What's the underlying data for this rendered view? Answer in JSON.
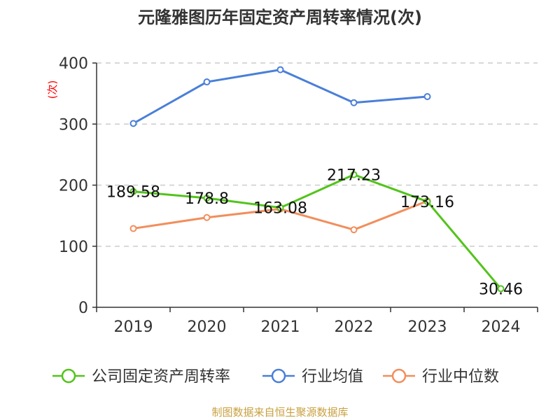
{
  "chart_data": {
    "type": "line",
    "title": "元隆雅图历年固定资产周转率情况(次)",
    "ylabel": "(次)",
    "xlabel": "",
    "categories": [
      "2019",
      "2020",
      "2021",
      "2022",
      "2023",
      "2024"
    ],
    "y_ticks": [
      "0",
      "100",
      "200",
      "300",
      "400"
    ],
    "ylim": [
      0,
      400
    ],
    "grid": true,
    "legend_position": "bottom",
    "series": [
      {
        "name": "公司固定资产周转率",
        "color": "#52c41a",
        "values": [
          189.58,
          178.8,
          163.08,
          217.23,
          173.16,
          30.46
        ],
        "labels": [
          "189.58",
          "178.8",
          "163.08",
          "217.23",
          "173.16",
          "30.46"
        ]
      },
      {
        "name": "行业均值",
        "color": "#4a7fd8",
        "values": [
          301,
          369,
          389,
          335,
          345,
          null
        ],
        "labels": null
      },
      {
        "name": "行业中位数",
        "color": "#f28e5c",
        "values": [
          129,
          147,
          161,
          127,
          174,
          null
        ],
        "labels": null
      }
    ],
    "source": "制图数据来自恒生聚源数据库"
  }
}
